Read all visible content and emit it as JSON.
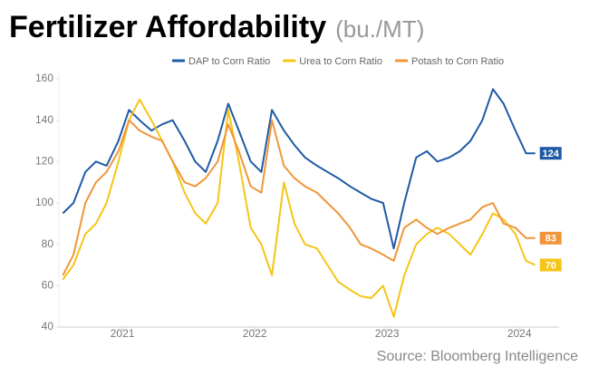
{
  "chart_data": {
    "type": "line",
    "title": "Fertilizer Affordability",
    "subtitle": "(bu./MT)",
    "source": "Source: Bloomberg Intelligence",
    "x": [
      2020.55,
      2020.63,
      2020.72,
      2020.8,
      2020.88,
      2020.97,
      2021.05,
      2021.13,
      2021.22,
      2021.3,
      2021.38,
      2021.47,
      2021.55,
      2021.63,
      2021.72,
      2021.8,
      2021.88,
      2021.97,
      2022.05,
      2022.13,
      2022.22,
      2022.3,
      2022.38,
      2022.47,
      2022.55,
      2022.63,
      2022.72,
      2022.8,
      2022.88,
      2022.97,
      2023.05,
      2023.13,
      2023.22,
      2023.3,
      2023.38,
      2023.47,
      2023.55,
      2023.63,
      2023.72,
      2023.8,
      2023.88,
      2023.97,
      2024.05,
      2024.12
    ],
    "series": [
      {
        "name": "DAP to Corn Ratio",
        "color": "#1f5aa6",
        "values": [
          95,
          100,
          115,
          120,
          118,
          130,
          145,
          140,
          135,
          138,
          140,
          130,
          120,
          115,
          130,
          148,
          135,
          120,
          115,
          145,
          135,
          128,
          122,
          118,
          115,
          112,
          108,
          105,
          102,
          100,
          78,
          100,
          122,
          125,
          120,
          122,
          125,
          130,
          140,
          155,
          148,
          135,
          124,
          124
        ]
      },
      {
        "name": "Urea to Corn Ratio",
        "color": "#f5c518",
        "values": [
          63,
          70,
          85,
          90,
          100,
          120,
          140,
          150,
          140,
          130,
          120,
          105,
          95,
          90,
          100,
          145,
          120,
          88,
          80,
          65,
          110,
          90,
          80,
          78,
          70,
          62,
          58,
          55,
          54,
          60,
          45,
          65,
          80,
          85,
          88,
          85,
          80,
          75,
          85,
          95,
          92,
          85,
          72,
          70
        ]
      },
      {
        "name": "Potash to Corn Ratio",
        "color": "#f0963a",
        "values": [
          65,
          75,
          100,
          110,
          115,
          125,
          140,
          135,
          132,
          130,
          120,
          110,
          108,
          112,
          120,
          138,
          125,
          108,
          105,
          140,
          118,
          112,
          108,
          105,
          100,
          95,
          88,
          80,
          78,
          75,
          72,
          88,
          92,
          88,
          85,
          88,
          90,
          92,
          98,
          100,
          90,
          88,
          83,
          83
        ]
      }
    ],
    "xlim": [
      2020.52,
      2024.3
    ],
    "xticks": [
      2021,
      2022,
      2023,
      2024
    ],
    "ylim": [
      40,
      160
    ],
    "yticks": [
      40,
      60,
      80,
      100,
      120,
      140,
      160
    ]
  }
}
